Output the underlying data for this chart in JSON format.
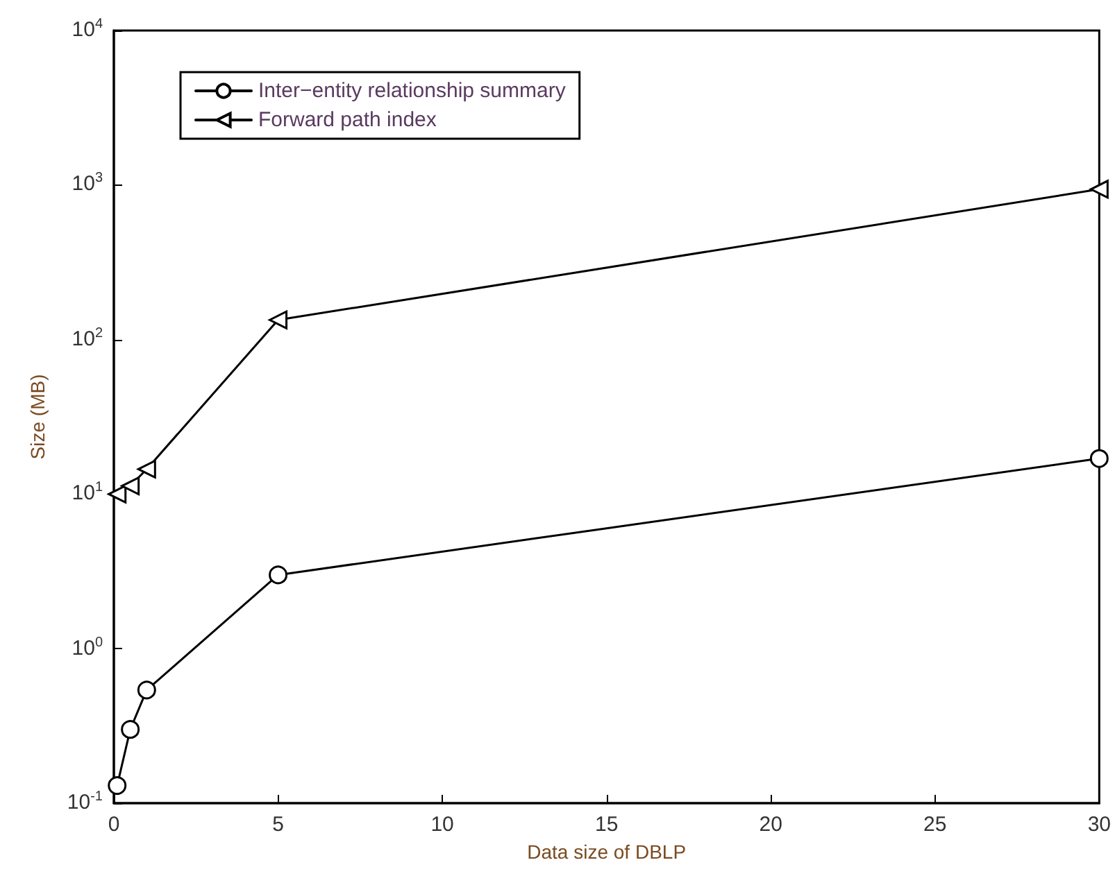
{
  "chart_data": {
    "type": "line",
    "xlabel": "Data size of DBLP",
    "ylabel": "Size (MB)",
    "log": "y",
    "xlim": [
      0,
      30
    ],
    "xticks": [
      0,
      5,
      10,
      15,
      20,
      25,
      30
    ],
    "ylim": [
      0.1,
      10000
    ],
    "yticks": [
      {
        "value": 0.1,
        "label": "10$^{-1}$"
      },
      {
        "value": 1,
        "label": "10$^{0}$"
      },
      {
        "value": 10,
        "label": "10$^{1}$"
      },
      {
        "value": 100,
        "label": "10$^{2}$"
      },
      {
        "value": 1000,
        "label": "10$^{3}$"
      },
      {
        "value": 10000,
        "label": "10$^{4}$"
      }
    ],
    "x": [
      0.1,
      0.5,
      1,
      5,
      30
    ],
    "series": [
      {
        "name": "Inter−entity relationship summary",
        "color": "#000000",
        "marker": "circle",
        "values": [
          0.13,
          0.3,
          0.54,
          3,
          17
        ]
      },
      {
        "name": "Forward path index",
        "color": "#000000",
        "marker": "triangle",
        "values": [
          10,
          11.3,
          14.5,
          134,
          940
        ]
      }
    ],
    "grid": false,
    "legend": "top left",
    "line_style": "solid"
  }
}
